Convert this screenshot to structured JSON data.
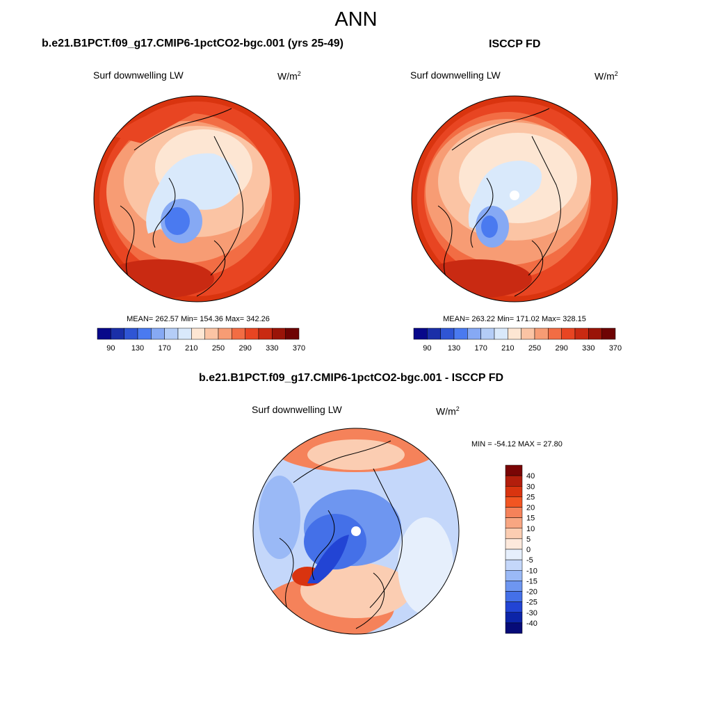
{
  "main_title": "ANN",
  "panels": [
    {
      "title": "b.e21.B1PCT.f09_g17.CMIP6-1pctCO2-bgc.001 (yrs 25-49)",
      "variable": "Surf downwelling LW",
      "units": "W/m",
      "units_exp": "2",
      "stats": "MEAN= 262.57  Min= 154.36  Max= 342.26"
    },
    {
      "title": "ISCCP FD",
      "variable": "Surf downwelling LW",
      "units": "W/m",
      "units_exp": "2",
      "stats": "MEAN= 263.22  Min= 171.02  Max= 328.15"
    },
    {
      "title": "b.e21.B1PCT.f09_g17.CMIP6-1pctCO2-bgc.001 - ISCCP FD",
      "variable": "Surf downwelling LW",
      "units": "W/m",
      "units_exp": "2",
      "stats": "MIN = -54.12 MAX =  27.80"
    }
  ],
  "colorbar_main": {
    "labels": [
      "90",
      "130",
      "170",
      "210",
      "250",
      "290",
      "330",
      "370"
    ],
    "colors": [
      "#08088a",
      "#1a2fa8",
      "#2f55d4",
      "#4a7af0",
      "#86a9f4",
      "#b4cdf7",
      "#d9e9fb",
      "#fde6d3",
      "#fbc4a4",
      "#f79c74",
      "#f26d44",
      "#e84522",
      "#c92a12",
      "#9a1408",
      "#6e0303"
    ]
  },
  "colorbar_diff": {
    "labels": [
      "40",
      "30",
      "25",
      "20",
      "15",
      "10",
      "5",
      "0",
      "-5",
      "-10",
      "-15",
      "-20",
      "-25",
      "-30",
      "-40"
    ],
    "colors": [
      "#7a0505",
      "#b31e0c",
      "#d9340f",
      "#f25522",
      "#f5825a",
      "#f8a682",
      "#fbcdb2",
      "#fde9dc",
      "#e6effc",
      "#c4d7fa",
      "#9ab9f6",
      "#6e96f0",
      "#4470e8",
      "#2244d4",
      "#0c24a8",
      "#060b78"
    ]
  }
}
